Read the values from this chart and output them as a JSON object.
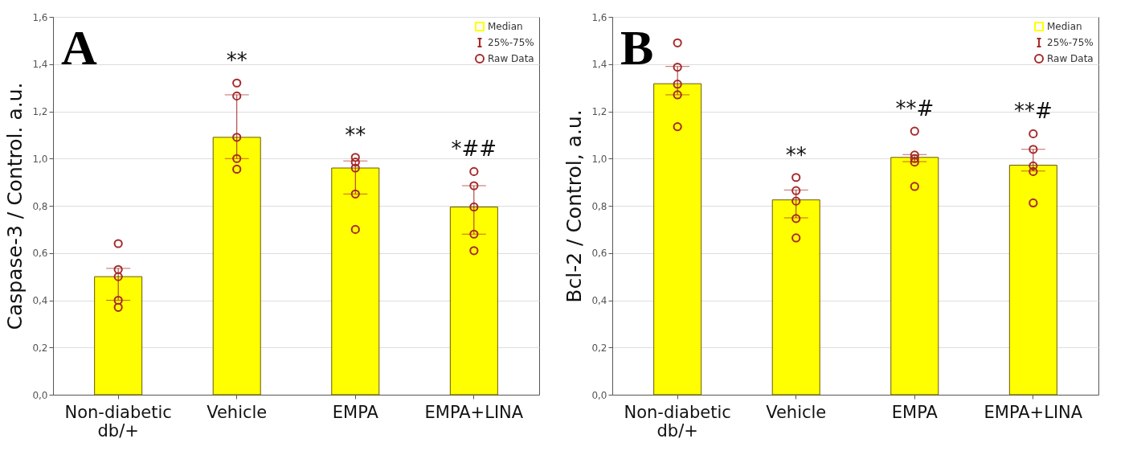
{
  "chart_data": [
    {
      "type": "bar",
      "ylabel": "Caspase-3 / Control. a.u.",
      "categories": [
        "Non-diabetic\ndb/+",
        "Vehicle",
        "EMPA",
        "EMPA+LINA"
      ],
      "series": [
        {
          "name": "Median",
          "color": "#ffff00",
          "values": [
            0.5,
            1.09,
            0.96,
            0.795
          ],
          "errors": [
            [
              0.4,
              0.535
            ],
            [
              1.0,
              1.27
            ],
            [
              0.85,
              0.99
            ],
            [
              0.68,
              0.885
            ]
          ]
        },
        {
          "name": "Raw Data",
          "type": "scatter",
          "color": "#a52a2a",
          "x": [
            "Non-diabetic\ndb/+",
            "Non-diabetic\ndb/+",
            "Non-diabetic\ndb/+",
            "Non-diabetic\ndb/+",
            "Non-diabetic\ndb/+",
            "Vehicle",
            "Vehicle",
            "Vehicle",
            "Vehicle",
            "Vehicle",
            "EMPA",
            "EMPA",
            "EMPA",
            "EMPA",
            "EMPA",
            "EMPA+LINA",
            "EMPA+LINA",
            "EMPA+LINA",
            "EMPA+LINA",
            "EMPA+LINA"
          ],
          "values": [
            0.64,
            0.53,
            0.5,
            0.4,
            0.37,
            1.32,
            1.265,
            1.09,
            1.0,
            0.955,
            1.005,
            0.985,
            0.96,
            0.85,
            0.7,
            0.945,
            0.885,
            0.795,
            0.68,
            0.61
          ]
        }
      ],
      "ylim": [
        0,
        1.6
      ],
      "yticks": [
        {
          "value": 0,
          "label": "0,0"
        },
        {
          "value": 0.2,
          "label": "0,2"
        },
        {
          "value": 0.4,
          "label": "0,4"
        },
        {
          "value": 0.6,
          "label": "0,6"
        },
        {
          "value": 0.8,
          "label": "0,8"
        },
        {
          "value": 1,
          "label": "1,0"
        },
        {
          "value": 1.2,
          "label": "1,2"
        },
        {
          "value": 1.4,
          "label": "1,4"
        },
        {
          "value": 1.6,
          "label": "1,6"
        }
      ],
      "grid": "y",
      "legend": "top right",
      "marker": "circle",
      "annotations": [
        "A",
        "25%-75%",
        "**",
        "**",
        "*##"
      ]
    },
    {
      "type": "bar",
      "ylabel": "Bcl-2 / Control, a.u.",
      "categories": [
        "Non-diabetic\ndb/+",
        "Vehicle",
        "EMPA",
        "EMPA+LINA"
      ],
      "series": [
        {
          "name": "Median",
          "color": "#ffff00",
          "values": [
            1.317,
            0.825,
            1.005,
            0.972
          ],
          "errors": [
            [
              1.27,
              1.39
            ],
            [
              0.749,
              0.867
            ],
            [
              0.987,
              1.017
            ],
            [
              0.947,
              1.039
            ]
          ]
        },
        {
          "name": "Raw Data",
          "type": "scatter",
          "color": "#a52a2a",
          "x": [
            "Non-diabetic\ndb/+",
            "Non-diabetic\ndb/+",
            "Non-diabetic\ndb/+",
            "Non-diabetic\ndb/+",
            "Non-diabetic\ndb/+",
            "Vehicle",
            "Vehicle",
            "Vehicle",
            "Vehicle",
            "Vehicle",
            "EMPA",
            "EMPA",
            "EMPA",
            "EMPA",
            "EMPA",
            "EMPA+LINA",
            "EMPA+LINA",
            "EMPA+LINA",
            "EMPA+LINA",
            "EMPA+LINA"
          ],
          "values": [
            1.49,
            1.387,
            1.315,
            1.27,
            1.135,
            0.92,
            0.864,
            0.82,
            0.746,
            0.664,
            1.116,
            1.015,
            1.0,
            0.985,
            0.882,
            1.105,
            1.039,
            0.969,
            0.945,
            0.812
          ]
        }
      ],
      "ylim": [
        0,
        1.6
      ],
      "yticks": [
        {
          "value": 0,
          "label": "0,0"
        },
        {
          "value": 0.2,
          "label": "0,2"
        },
        {
          "value": 0.4,
          "label": "0,4"
        },
        {
          "value": 0.6,
          "label": "0,6"
        },
        {
          "value": 0.8,
          "label": "0,8"
        },
        {
          "value": 1,
          "label": "1,0"
        },
        {
          "value": 1.2,
          "label": "1,2"
        },
        {
          "value": 1.4,
          "label": "1,4"
        },
        {
          "value": 1.6,
          "label": "1,6"
        }
      ],
      "grid": "y",
      "legend": "top right",
      "marker": "circle",
      "annotations": [
        "B",
        "25%-75%",
        "**",
        "**#",
        "**#"
      ]
    }
  ]
}
